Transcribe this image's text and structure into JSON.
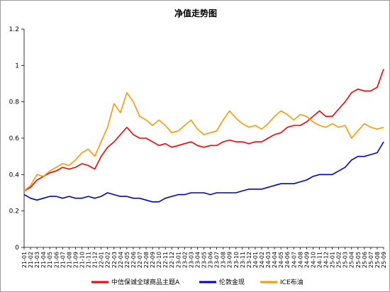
{
  "chart_data": {
    "type": "line",
    "title": "净值走势图",
    "xlabel": "",
    "ylabel": "",
    "ylim": [
      0,
      1.2
    ],
    "yticks": [
      "0",
      "0.2",
      "0.4",
      "0.6",
      "0.8",
      "1",
      "1.2"
    ],
    "grid": false,
    "legend_position": "bottom",
    "x_tick_labels": [
      "21-01",
      "21-02",
      "21-03",
      "21-04",
      "21-05",
      "21-06",
      "21-07",
      "21-08",
      "21-09",
      "21-10",
      "21-11",
      "21-12",
      "22-01",
      "22-02",
      "22-03",
      "22-04",
      "22-05",
      "22-06",
      "22-07",
      "22-08",
      "22-09",
      "22-10",
      "22-11",
      "22-12",
      "23-01",
      "23-02",
      "23-03",
      "23-04",
      "23-05",
      "23-06",
      "23-07",
      "23-08",
      "23-09",
      "23-10",
      "23-11",
      "23-12",
      "24-01",
      "24-02",
      "24-03",
      "24-04",
      "24-05",
      "24-06",
      "24-07",
      "24-08",
      "24-09",
      "24-10",
      "24-11",
      "24-12",
      "25-01",
      "25-02",
      "25-03",
      "25-04",
      "25-05",
      "25-06",
      "25-07",
      "25-08",
      "25-09"
    ],
    "series": [
      {
        "name": "中信保诚全球商品主题A",
        "color": "#ff0000",
        "values": [
          0.31,
          0.33,
          0.37,
          0.39,
          0.41,
          0.42,
          0.44,
          0.43,
          0.44,
          0.46,
          0.45,
          0.43,
          0.5,
          0.55,
          0.58,
          0.62,
          0.66,
          0.62,
          0.6,
          0.6,
          0.58,
          0.56,
          0.57,
          0.55,
          0.56,
          0.57,
          0.58,
          0.56,
          0.55,
          0.56,
          0.56,
          0.58,
          0.59,
          0.58,
          0.58,
          0.57,
          0.58,
          0.58,
          0.6,
          0.62,
          0.63,
          0.66,
          0.67,
          0.67,
          0.69,
          0.72,
          0.75,
          0.72,
          0.72,
          0.76,
          0.8,
          0.85,
          0.87,
          0.86,
          0.86,
          0.88,
          0.98
        ]
      },
      {
        "name": "伦敦金现",
        "color": "#0000cc",
        "values": [
          0.29,
          0.27,
          0.26,
          0.27,
          0.28,
          0.28,
          0.27,
          0.28,
          0.27,
          0.27,
          0.28,
          0.27,
          0.28,
          0.3,
          0.29,
          0.28,
          0.28,
          0.27,
          0.27,
          0.26,
          0.25,
          0.25,
          0.27,
          0.28,
          0.29,
          0.29,
          0.3,
          0.3,
          0.3,
          0.29,
          0.3,
          0.3,
          0.3,
          0.3,
          0.31,
          0.32,
          0.32,
          0.32,
          0.33,
          0.34,
          0.35,
          0.35,
          0.35,
          0.36,
          0.37,
          0.39,
          0.4,
          0.4,
          0.4,
          0.42,
          0.44,
          0.48,
          0.5,
          0.5,
          0.51,
          0.52,
          0.58
        ]
      },
      {
        "name": "ICE布油",
        "color": "#ff9900",
        "values": [
          0.31,
          0.34,
          0.4,
          0.39,
          0.42,
          0.44,
          0.46,
          0.45,
          0.48,
          0.52,
          0.54,
          0.5,
          0.58,
          0.66,
          0.79,
          0.74,
          0.85,
          0.8,
          0.72,
          0.7,
          0.67,
          0.7,
          0.67,
          0.63,
          0.64,
          0.67,
          0.7,
          0.65,
          0.62,
          0.63,
          0.64,
          0.7,
          0.75,
          0.71,
          0.68,
          0.66,
          0.67,
          0.65,
          0.68,
          0.72,
          0.75,
          0.73,
          0.7,
          0.73,
          0.72,
          0.69,
          0.67,
          0.66,
          0.68,
          0.66,
          0.67,
          0.6,
          0.64,
          0.68,
          0.66,
          0.65,
          0.66
        ]
      }
    ]
  }
}
